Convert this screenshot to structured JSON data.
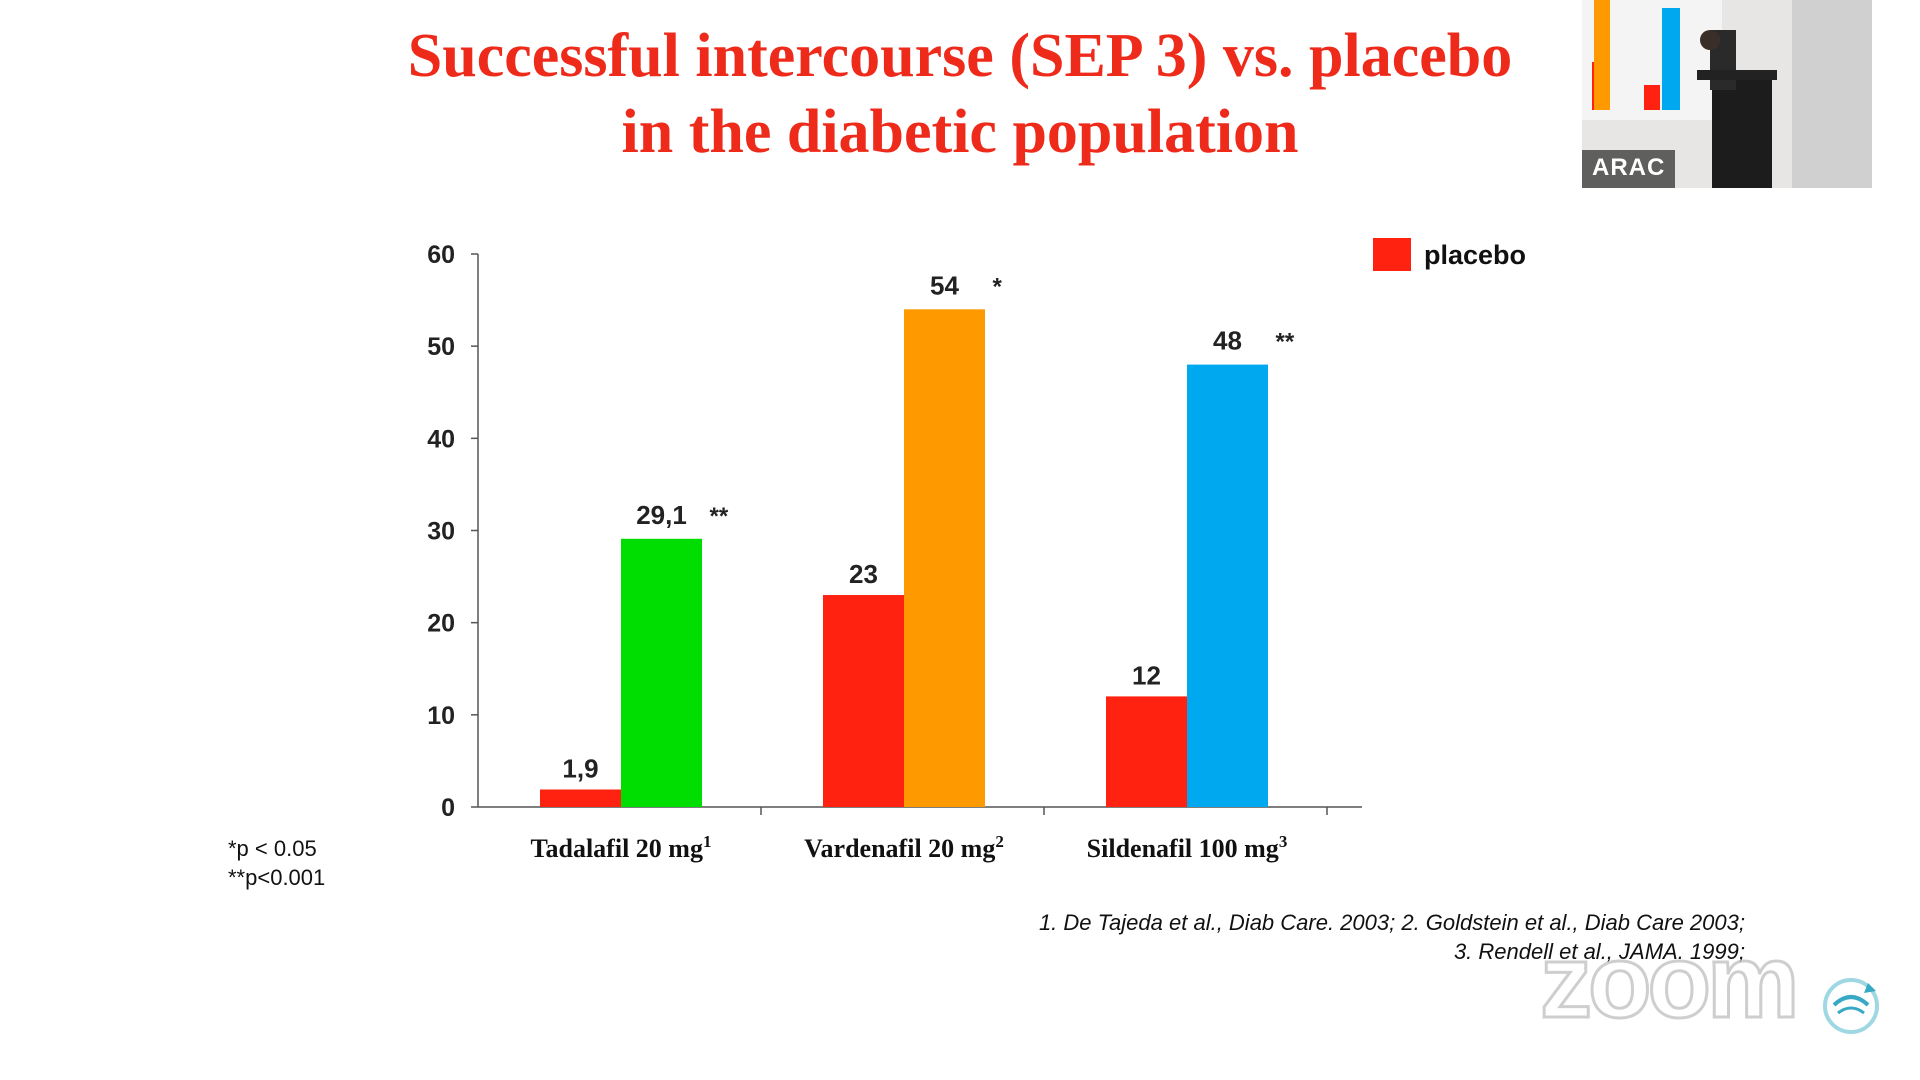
{
  "slide": {
    "title_line1": "Successful intercourse (SEP 3) vs. placebo",
    "title_line2": "in the diabetic population"
  },
  "footnotes": [
    "*p < 0.05",
    "**p<0.001"
  ],
  "references": [
    "1. De Tajeda et al., Diab Care. 2003; 2. Goldstein et al., Diab Care 2003;",
    "3. Rendell et al., JAMA. 1999;"
  ],
  "video": {
    "speaker_label": "ARAC"
  },
  "watermark": {
    "text": "zoom"
  },
  "colors": {
    "title": "#ee2a1b",
    "placebo": "#ff2211",
    "tadalafil": "#00dd00",
    "vardenafil": "#ff9900",
    "sildenafil": "#00a8f0"
  },
  "chart_data": {
    "type": "bar",
    "title": "",
    "xlabel": "",
    "ylabel": "",
    "ylim": [
      0,
      60
    ],
    "yticks": [
      "0",
      "10",
      "20",
      "30",
      "40",
      "50",
      "60"
    ],
    "grid": false,
    "legend_position": "top-right",
    "legend": [
      {
        "label": "placebo",
        "color": "#ff2211"
      }
    ],
    "groups": [
      {
        "label": "Tadalafil 20 mg",
        "superscript": "1",
        "placebo": {
          "value": 1.9,
          "label": "1,9"
        },
        "drug": {
          "value": 29.1,
          "label": "29,1",
          "sig": "**",
          "color": "#00dd00"
        }
      },
      {
        "label": "Vardenafil 20 mg",
        "superscript": "2",
        "placebo": {
          "value": 23,
          "label": "23"
        },
        "drug": {
          "value": 54,
          "label": "54",
          "sig": "*",
          "color": "#ff9900"
        }
      },
      {
        "label": "Sildenafil 100 mg",
        "superscript": "3",
        "placebo": {
          "value": 12,
          "label": "12"
        },
        "drug": {
          "value": 48,
          "label": "48",
          "sig": "**",
          "color": "#00a8f0"
        }
      }
    ]
  }
}
